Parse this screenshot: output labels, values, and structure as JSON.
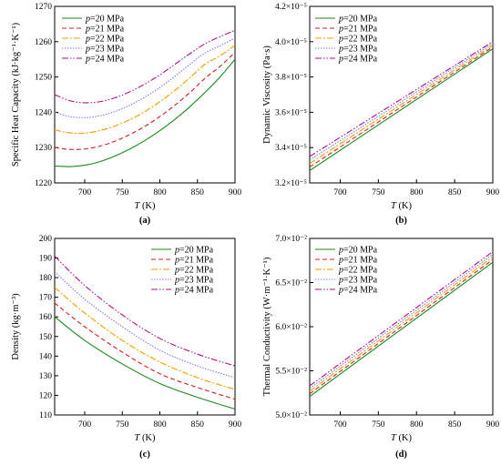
{
  "chart_data": [
    {
      "type": "line",
      "caption": "(a)",
      "xlabel_var": "T",
      "xlabel_unit": " (K)",
      "ylabel": "Specific Heat Capacity (kJ·kg⁻¹·K⁻¹)",
      "xlim": [
        660,
        900
      ],
      "ylim": [
        1220,
        1270
      ],
      "xticks": [
        700,
        750,
        800,
        850,
        900
      ],
      "yticks": [
        1220,
        1230,
        1240,
        1250,
        1260,
        1270
      ],
      "ytick_labels": [
        "1220",
        "1230",
        "1240",
        "1250",
        "1260",
        "1270"
      ],
      "legend_position": "top-left",
      "x": [
        660,
        680,
        700,
        720,
        740,
        760,
        780,
        800,
        820,
        840,
        860,
        880,
        900
      ],
      "series": [
        {
          "name": "p=20 MPa",
          "values": [
            1224.8,
            1224.6,
            1225.0,
            1226.0,
            1227.6,
            1229.6,
            1232.0,
            1234.8,
            1238.0,
            1241.6,
            1245.6,
            1250.0,
            1255.0
          ]
        },
        {
          "name": "p=21 MPa",
          "values": [
            1230.0,
            1229.5,
            1229.6,
            1230.4,
            1231.8,
            1233.7,
            1236.0,
            1238.8,
            1242.0,
            1245.6,
            1249.6,
            1253.0,
            1257.0
          ]
        },
        {
          "name": "p=22 MPa",
          "values": [
            1235.0,
            1234.2,
            1234.1,
            1234.8,
            1236.1,
            1237.9,
            1240.2,
            1243.0,
            1246.2,
            1249.8,
            1253.6,
            1256.0,
            1259.0
          ]
        },
        {
          "name": "p=23 MPa",
          "values": [
            1240.0,
            1238.8,
            1238.5,
            1239.0,
            1240.2,
            1242.0,
            1244.3,
            1247.0,
            1250.2,
            1253.6,
            1256.8,
            1258.8,
            1261.0
          ]
        },
        {
          "name": "p=24 MPa",
          "values": [
            1245.0,
            1243.3,
            1242.7,
            1243.0,
            1244.1,
            1245.8,
            1248.0,
            1250.6,
            1253.6,
            1256.6,
            1259.4,
            1261.4,
            1263.2
          ]
        }
      ]
    },
    {
      "type": "line",
      "caption": "(b)",
      "xlabel_var": "T",
      "xlabel_unit": " (K)",
      "ylabel": "Dynamic Viscosity (Pa·s)",
      "xlim": [
        660,
        900
      ],
      "ylim": [
        3.2,
        4.2
      ],
      "xticks": [
        700,
        750,
        800,
        850,
        900
      ],
      "yticks": [
        3.2,
        3.4,
        3.6,
        3.8,
        4.0,
        4.2
      ],
      "ytick_labels": [
        "3.2×10⁻⁵",
        "3.4×10⁻⁵",
        "3.6×10⁻⁵",
        "3.8×10⁻⁵",
        "4.0×10⁻⁵",
        "4.2×10⁻⁵"
      ],
      "legend_position": "top-left",
      "x": [
        660,
        900
      ],
      "series": [
        {
          "name": "p=20 MPa",
          "values": [
            3.27,
            3.96
          ]
        },
        {
          "name": "p=21 MPa",
          "values": [
            3.29,
            3.97
          ]
        },
        {
          "name": "p=22 MPa",
          "values": [
            3.31,
            3.98
          ]
        },
        {
          "name": "p=23 MPa",
          "values": [
            3.33,
            3.99
          ]
        },
        {
          "name": "p=24 MPa",
          "values": [
            3.35,
            4.0
          ]
        }
      ]
    },
    {
      "type": "line",
      "caption": "(c)",
      "xlabel_var": "T",
      "xlabel_unit": " (K)",
      "ylabel": "Density (kg·m⁻³)",
      "xlim": [
        660,
        900
      ],
      "ylim": [
        110,
        200
      ],
      "xticks": [
        700,
        750,
        800,
        850,
        900
      ],
      "yticks": [
        110,
        120,
        130,
        140,
        150,
        160,
        170,
        180,
        190,
        200
      ],
      "ytick_labels": [
        "110",
        "120",
        "130",
        "140",
        "150",
        "160",
        "170",
        "180",
        "190",
        "200"
      ],
      "legend_position": "top-right",
      "x": [
        660,
        700,
        750,
        800,
        850,
        900
      ],
      "series": [
        {
          "name": "p=20 MPa",
          "values": [
            160,
            148,
            136,
            126,
            119,
            113
          ]
        },
        {
          "name": "p=21 MPa",
          "values": [
            167,
            155,
            142,
            131,
            124,
            118
          ]
        },
        {
          "name": "p=22 MPa",
          "values": [
            175,
            162,
            148,
            137,
            129,
            123
          ]
        },
        {
          "name": "p=23 MPa",
          "values": [
            183,
            169,
            155,
            143,
            135,
            129
          ]
        },
        {
          "name": "p=24 MPa",
          "values": [
            191,
            176,
            161,
            149,
            141,
            135
          ]
        }
      ]
    },
    {
      "type": "line",
      "caption": "(d)",
      "xlabel_var": "T",
      "xlabel_unit": " (K)",
      "ylabel": "Thermal Conductivity (W·m⁻¹·K⁻¹)",
      "xlim": [
        660,
        900
      ],
      "ylim": [
        5.0,
        7.0
      ],
      "xticks": [
        700,
        750,
        800,
        850,
        900
      ],
      "yticks": [
        5.0,
        5.5,
        6.0,
        6.5,
        7.0
      ],
      "ytick_labels": [
        "5.0×10⁻²",
        "5.5×10⁻²",
        "6.0×10⁻²",
        "6.5×10⁻²",
        "7.0×10⁻²"
      ],
      "legend_position": "top-left",
      "x": [
        660,
        900
      ],
      "series": [
        {
          "name": "p=20 MPa",
          "values": [
            5.21,
            6.73
          ]
        },
        {
          "name": "p=21 MPa",
          "values": [
            5.24,
            6.76
          ]
        },
        {
          "name": "p=22 MPa",
          "values": [
            5.27,
            6.79
          ]
        },
        {
          "name": "p=23 MPa",
          "values": [
            5.3,
            6.82
          ]
        },
        {
          "name": "p=24 MPa",
          "values": [
            5.33,
            6.85
          ]
        }
      ]
    }
  ],
  "series_styles": [
    {
      "color": "#1a8a1a",
      "dash": ""
    },
    {
      "color": "#d42020",
      "dash": "5,3"
    },
    {
      "color": "#f0a000",
      "dash": "7,2,2,2"
    },
    {
      "color": "#7a7aff",
      "dash": "1.5,1.5"
    },
    {
      "color": "#b0108a",
      "dash": "7,2,1.5,2,1.5,2"
    }
  ]
}
